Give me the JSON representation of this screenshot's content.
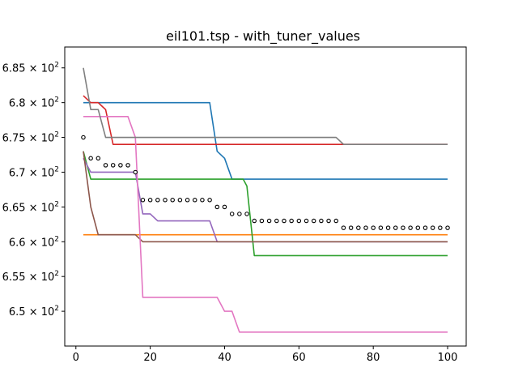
{
  "chart_data": {
    "type": "line",
    "title": "eil101.tsp - with_tuner_values",
    "xlabel": "",
    "ylabel": "",
    "xlim": [
      -3,
      105
    ],
    "ylim": [
      645,
      688
    ],
    "grid": false,
    "x_ticks": [
      {
        "value": 0,
        "label": "0"
      },
      {
        "value": 20,
        "label": "20"
      },
      {
        "value": 40,
        "label": "40"
      },
      {
        "value": 60,
        "label": "60"
      },
      {
        "value": 80,
        "label": "80"
      },
      {
        "value": 100,
        "label": "100"
      }
    ],
    "y_ticks": [
      {
        "value": 650,
        "mantissa": "6.5",
        "exponent": "2"
      },
      {
        "value": 655,
        "mantissa": "6.55",
        "exponent": "2"
      },
      {
        "value": 660,
        "mantissa": "6.6",
        "exponent": "2"
      },
      {
        "value": 665,
        "mantissa": "6.65",
        "exponent": "2"
      },
      {
        "value": 670,
        "mantissa": "6.7",
        "exponent": "2"
      },
      {
        "value": 675,
        "mantissa": "6.75",
        "exponent": "2"
      },
      {
        "value": 680,
        "mantissa": "6.8",
        "exponent": "2"
      },
      {
        "value": 685,
        "mantissa": "6.85",
        "exponent": "2"
      }
    ],
    "tick_times": "×",
    "tick_base": "10",
    "series": [
      {
        "color": "#1f77b4",
        "points": [
          [
            2,
            680
          ],
          [
            36,
            680
          ],
          [
            38,
            673
          ],
          [
            40,
            672
          ],
          [
            42,
            669
          ],
          [
            100,
            669
          ]
        ]
      },
      {
        "color": "#ff7f0e",
        "points": [
          [
            2,
            661
          ],
          [
            100,
            661
          ]
        ]
      },
      {
        "color": "#2ca02c",
        "points": [
          [
            2,
            673
          ],
          [
            4,
            669
          ],
          [
            45,
            669
          ],
          [
            46,
            668
          ],
          [
            48,
            658
          ],
          [
            100,
            658
          ]
        ]
      },
      {
        "color": "#d62728",
        "points": [
          [
            2,
            681
          ],
          [
            4,
            680
          ],
          [
            6,
            680
          ],
          [
            8,
            679
          ],
          [
            10,
            674
          ],
          [
            100,
            674
          ]
        ]
      },
      {
        "color": "#9467bd",
        "points": [
          [
            2,
            672
          ],
          [
            4,
            670
          ],
          [
            16,
            670
          ],
          [
            18,
            664
          ],
          [
            20,
            664
          ],
          [
            22,
            663
          ],
          [
            36,
            663
          ],
          [
            38,
            660
          ],
          [
            100,
            660
          ]
        ]
      },
      {
        "color": "#8c564b",
        "points": [
          [
            2,
            673
          ],
          [
            4,
            665
          ],
          [
            6,
            661
          ],
          [
            16,
            661
          ],
          [
            18,
            660
          ],
          [
            100,
            660
          ]
        ]
      },
      {
        "color": "#e377c2",
        "points": [
          [
            2,
            678
          ],
          [
            14,
            678
          ],
          [
            16,
            675
          ],
          [
            18,
            652
          ],
          [
            38,
            652
          ],
          [
            40,
            650
          ],
          [
            42,
            650
          ],
          [
            44,
            647
          ],
          [
            100,
            647
          ]
        ]
      },
      {
        "color": "#7f7f7f",
        "points": [
          [
            2,
            685
          ],
          [
            4,
            679
          ],
          [
            6,
            679
          ],
          [
            8,
            675
          ],
          [
            70,
            675
          ],
          [
            72,
            674
          ],
          [
            100,
            674
          ]
        ]
      }
    ],
    "scatter": {
      "color": "#000000",
      "points": [
        [
          2,
          675
        ],
        [
          4,
          672
        ],
        [
          6,
          672
        ],
        [
          8,
          671
        ],
        [
          10,
          671
        ],
        [
          12,
          671
        ],
        [
          14,
          671
        ],
        [
          16,
          670
        ],
        [
          18,
          666
        ],
        [
          20,
          666
        ],
        [
          22,
          666
        ],
        [
          24,
          666
        ],
        [
          26,
          666
        ],
        [
          28,
          666
        ],
        [
          30,
          666
        ],
        [
          32,
          666
        ],
        [
          34,
          666
        ],
        [
          36,
          666
        ],
        [
          38,
          665
        ],
        [
          40,
          665
        ],
        [
          42,
          664
        ],
        [
          44,
          664
        ],
        [
          46,
          664
        ],
        [
          48,
          663
        ],
        [
          50,
          663
        ],
        [
          52,
          663
        ],
        [
          54,
          663
        ],
        [
          56,
          663
        ],
        [
          58,
          663
        ],
        [
          60,
          663
        ],
        [
          62,
          663
        ],
        [
          64,
          663
        ],
        [
          66,
          663
        ],
        [
          68,
          663
        ],
        [
          70,
          663
        ],
        [
          72,
          662
        ],
        [
          74,
          662
        ],
        [
          76,
          662
        ],
        [
          78,
          662
        ],
        [
          80,
          662
        ],
        [
          82,
          662
        ],
        [
          84,
          662
        ],
        [
          86,
          662
        ],
        [
          88,
          662
        ],
        [
          90,
          662
        ],
        [
          92,
          662
        ],
        [
          94,
          662
        ],
        [
          96,
          662
        ],
        [
          98,
          662
        ],
        [
          100,
          662
        ]
      ]
    }
  }
}
